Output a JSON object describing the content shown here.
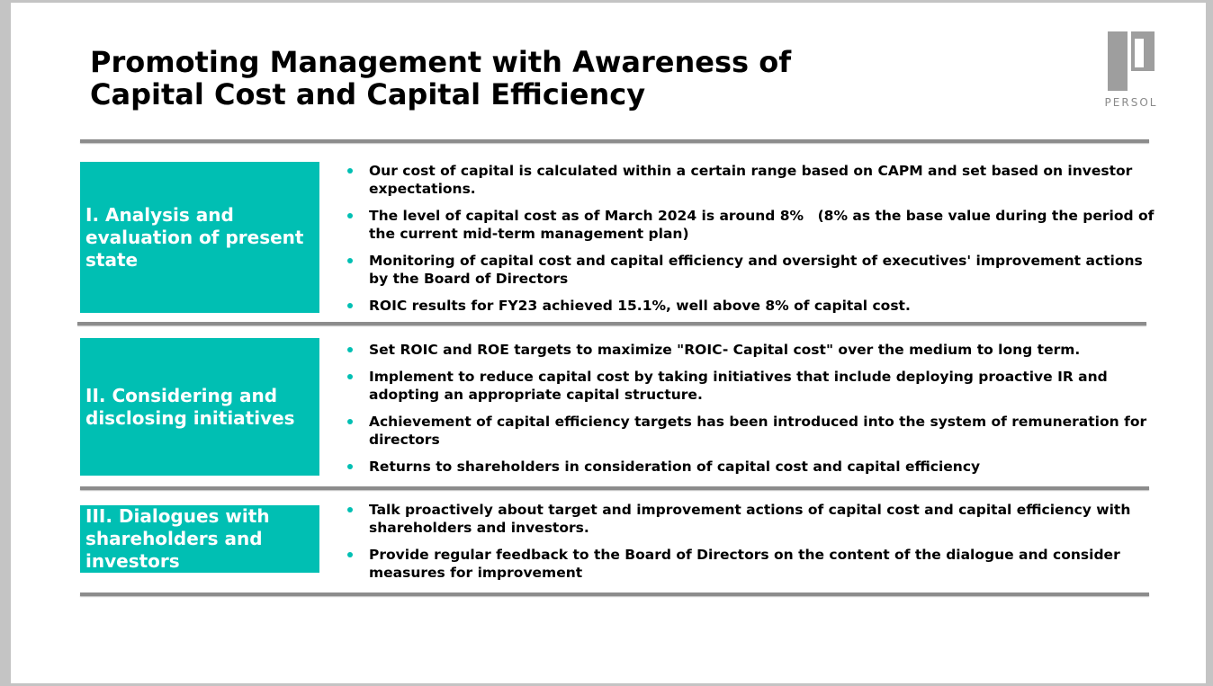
{
  "title": {
    "line1": "Promoting Management with Awareness of",
    "line2": "Capital Cost and Capital Efficiency"
  },
  "logo": {
    "text": "PERSOL",
    "icon": "persol-logo-icon",
    "color": "#9e9e9e"
  },
  "colors": {
    "accent": "#00bfb3",
    "rule": "#8c8c8c"
  },
  "sections": [
    {
      "label": "I. Analysis and evaluation of present state",
      "bullets": [
        "Our cost of capital is calculated within a certain range based on CAPM and set based on investor expectations.",
        "The level of capital cost as of March 2024 is around 8%　(8% as the base value during the period of the current mid-term management plan)",
        "Monitoring of capital cost and capital efficiency and oversight of executives' improvement actions by the Board of Directors",
        "ROIC results for FY23 achieved 15.1%, well above 8% of capital cost."
      ]
    },
    {
      "label": "II. Considering and disclosing initiatives",
      "bullets": [
        "Set ROIC and ROE targets to maximize \"ROIC- Capital cost\" over the medium to long term.",
        "Implement to reduce capital cost by taking initiatives that include deploying proactive IR and adopting an appropriate capital structure.",
        "Achievement of capital efficiency targets has been introduced into the system of remuneration for directors",
        "Returns to shareholders in consideration of capital cost and capital efficiency"
      ]
    },
    {
      "label": "III. Dialogues with shareholders and investors",
      "bullets": [
        "Talk proactively about target and improvement actions of capital cost and capital efficiency with shareholders and investors.",
        "Provide regular feedback to the Board of Directors on the content of the dialogue and consider measures for improvement"
      ]
    }
  ]
}
